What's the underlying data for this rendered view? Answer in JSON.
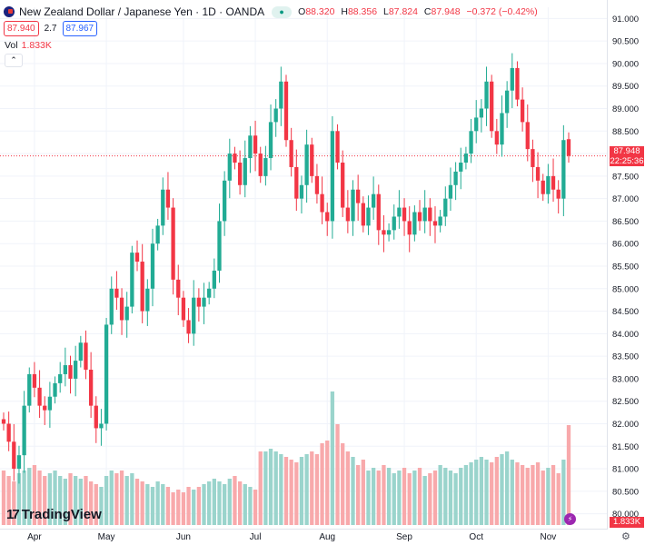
{
  "header": {
    "title": "New Zealand Dollar / Japanese Yen · 1D · OANDA",
    "market_icon": "market-status-icon",
    "ohlc": [
      {
        "k": "O",
        "v": "88.320"
      },
      {
        "k": "H",
        "v": "88.356"
      },
      {
        "k": "L",
        "v": "87.824"
      },
      {
        "k": "C",
        "v": "87.948"
      },
      {
        "k": "",
        "v": "−0.372 (−0.42%)"
      }
    ],
    "sell": "87.940",
    "spread": "2.7",
    "buy": "87.967"
  },
  "volume_legend": {
    "label": "Vol",
    "value": "1.833K"
  },
  "collapse_icon": "chevron-up-icon",
  "logo_text": "TradingView",
  "last_price_tag": {
    "price": "87.948",
    "countdown": "22:25:36"
  },
  "volume_tag": "1.833K",
  "colors": {
    "up": "#22ab94",
    "down": "#f23645",
    "vol_up": "#9ad4cc",
    "vol_down": "#f8a9ab"
  },
  "chart_data": {
    "type": "candlestick",
    "ylim": [
      79.75,
      91.25
    ],
    "y_ticks": [
      "80.000",
      "80.500",
      "81.000",
      "81.500",
      "82.000",
      "82.500",
      "83.000",
      "83.500",
      "84.000",
      "84.500",
      "85.000",
      "85.500",
      "86.000",
      "86.500",
      "87.000",
      "87.500",
      "88.000",
      "88.500",
      "89.000",
      "89.500",
      "90.000",
      "90.500",
      "91.000"
    ],
    "x_labels": [
      {
        "label": "Apr",
        "index": 6
      },
      {
        "label": "May",
        "index": 20
      },
      {
        "label": "Jun",
        "index": 35
      },
      {
        "label": "Jul",
        "index": 49
      },
      {
        "label": "Aug",
        "index": 63
      },
      {
        "label": "Sep",
        "index": 78
      },
      {
        "label": "Oct",
        "index": 92
      },
      {
        "label": "Nov",
        "index": 106
      }
    ],
    "grid": true,
    "closes": [
      82.0,
      81.6,
      81.0,
      81.3,
      82.4,
      83.1,
      82.8,
      82.4,
      82.3,
      82.6,
      82.9,
      83.1,
      83.3,
      83.0,
      83.4,
      83.8,
      83.2,
      82.4,
      81.9,
      82.0,
      84.2,
      85.0,
      84.8,
      84.3,
      84.6,
      85.8,
      85.6,
      84.5,
      85.0,
      86.0,
      86.4,
      87.2,
      86.8,
      85.2,
      84.8,
      84.3,
      84.0,
      84.8,
      84.6,
      84.8,
      85.0,
      85.4,
      86.5,
      87.4,
      88.0,
      87.8,
      87.3,
      87.9,
      88.4,
      88.0,
      87.5,
      87.9,
      88.7,
      89.0,
      89.6,
      88.3,
      87.7,
      87.0,
      87.3,
      88.2,
      87.5,
      87.1,
      86.7,
      86.5,
      88.5,
      87.8,
      86.8,
      86.5,
      87.2,
      86.9,
      86.4,
      86.8,
      87.1,
      86.3,
      86.2,
      86.3,
      86.6,
      86.8,
      86.5,
      86.2,
      86.7,
      86.5,
      86.8,
      86.5,
      86.4,
      86.6,
      87.0,
      87.3,
      87.6,
      87.8,
      88.0,
      88.5,
      88.8,
      89.0,
      89.6,
      88.5,
      88.2,
      88.9,
      89.4,
      89.9,
      89.2,
      88.7,
      88.1,
      87.7,
      87.4,
      87.1,
      87.5,
      87.2,
      87.0,
      88.3,
      87.95
    ],
    "opens": [
      82.1,
      82.0,
      81.6,
      81.0,
      81.3,
      82.4,
      83.1,
      82.8,
      82.4,
      82.3,
      82.6,
      82.9,
      83.1,
      83.3,
      83.0,
      83.4,
      83.8,
      83.2,
      82.4,
      81.9,
      82.0,
      84.2,
      85.0,
      84.8,
      84.3,
      84.6,
      85.8,
      85.6,
      84.5,
      85.0,
      86.0,
      86.4,
      87.2,
      86.8,
      85.2,
      84.8,
      84.3,
      84.0,
      84.8,
      84.6,
      84.8,
      85.0,
      85.4,
      86.5,
      87.4,
      88.0,
      87.8,
      87.3,
      87.9,
      88.4,
      88.0,
      87.5,
      87.9,
      88.7,
      89.0,
      89.6,
      88.3,
      87.7,
      87.0,
      87.3,
      88.2,
      87.5,
      87.1,
      86.7,
      86.5,
      88.5,
      87.8,
      86.8,
      86.5,
      87.2,
      86.9,
      86.4,
      86.8,
      87.1,
      86.3,
      86.2,
      86.3,
      86.6,
      86.8,
      86.5,
      86.2,
      86.7,
      86.5,
      86.8,
      86.5,
      86.4,
      86.6,
      87.0,
      87.3,
      87.6,
      87.8,
      88.0,
      88.5,
      88.8,
      89.0,
      89.6,
      88.5,
      88.2,
      88.9,
      89.4,
      89.9,
      89.2,
      88.7,
      88.1,
      87.7,
      87.4,
      87.1,
      87.5,
      87.2,
      87.0,
      88.32
    ],
    "volume_scale_max": 2.5,
    "volumes": [
      1.0,
      0.9,
      0.8,
      0.95,
      1.0,
      1.05,
      1.1,
      1.0,
      0.9,
      0.95,
      1.0,
      0.9,
      0.85,
      0.95,
      0.9,
      0.85,
      0.9,
      0.8,
      0.75,
      0.7,
      0.9,
      1.0,
      0.95,
      1.0,
      0.9,
      0.95,
      0.85,
      0.8,
      0.75,
      0.7,
      0.8,
      0.75,
      0.7,
      0.6,
      0.65,
      0.6,
      0.7,
      0.65,
      0.7,
      0.75,
      0.8,
      0.85,
      0.8,
      0.75,
      0.85,
      0.9,
      0.8,
      0.75,
      0.7,
      0.65,
      1.35,
      1.35,
      1.4,
      1.35,
      1.3,
      1.25,
      1.2,
      1.15,
      1.25,
      1.3,
      1.35,
      1.3,
      1.5,
      1.55,
      2.45,
      1.85,
      1.5,
      1.35,
      1.25,
      1.1,
      1.2,
      1.0,
      1.05,
      1.0,
      1.1,
      1.05,
      0.95,
      1.0,
      1.05,
      0.95,
      1.0,
      1.05,
      0.9,
      0.95,
      1.0,
      1.1,
      1.05,
      1.0,
      0.95,
      1.05,
      1.1,
      1.15,
      1.2,
      1.25,
      1.2,
      1.15,
      1.25,
      1.3,
      1.35,
      1.2,
      1.15,
      1.1,
      1.05,
      1.1,
      1.15,
      1.0,
      1.05,
      1.1,
      0.95,
      1.2,
      1.833
    ]
  }
}
